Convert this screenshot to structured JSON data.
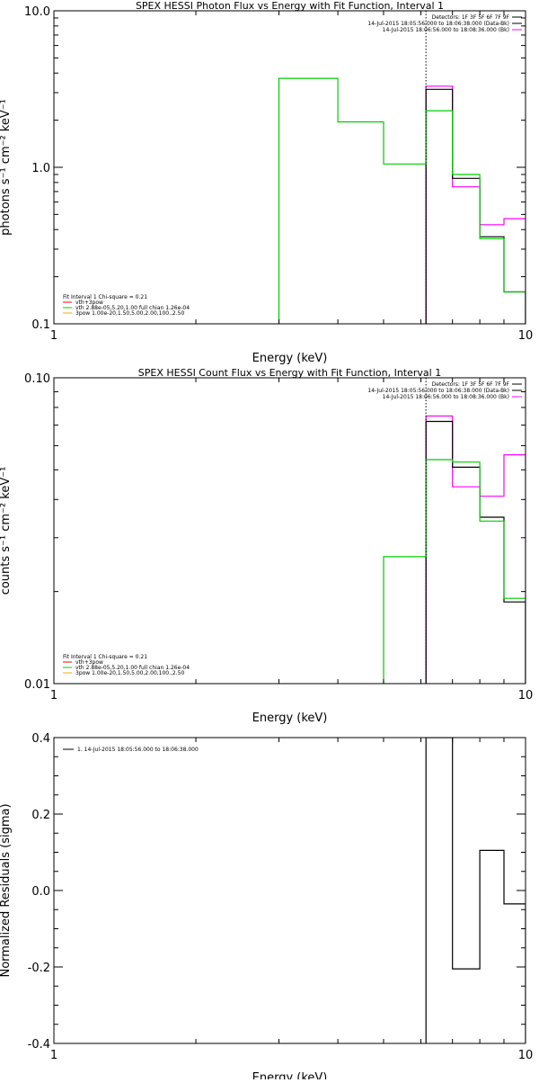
{
  "chart_data": [
    {
      "type": "line",
      "title": "SPEX HESSI Photon Flux vs Energy with Fit Function, Interval 1",
      "xlabel": "Energy (keV)",
      "ylabel": "photons s⁻¹ cm⁻² keV⁻¹",
      "xscale": "log",
      "yscale": "log",
      "xlim": [
        1,
        10
      ],
      "ylim": [
        0.1,
        10.0
      ],
      "xticks": [
        "1",
        "10"
      ],
      "yticks": [
        {
          "v": 0.1,
          "label": "0.1"
        },
        {
          "v": 1.0,
          "label": "1.0"
        },
        {
          "v": 10.0,
          "label": "10.0"
        }
      ],
      "vline_x": 6.15,
      "header_lines": [
        "Detectors: 1F 3F 5F 6F 7F 9F",
        "14-Jul-2015 18:05:56.000 to 18:06:38.000 (Data-Bk)",
        "14-Jul-2015 18:06:56.000 to 18:08:36.000 (Bk)"
      ],
      "header_colors": [
        "#000000",
        "#000000",
        "#ff00ff"
      ],
      "legend_title": "Fit Interval 1    Chi-square = 0.21",
      "legend_items": [
        {
          "label": "vth+3pow",
          "color": "#ff0000"
        },
        {
          "label": "vth 2.88e-05,5.20,1.00   full chian 1.26e-04",
          "color": "#00cc00"
        },
        {
          "label": "3pow 1.00e-20,1.50,5.00,2.00,100.,2.50",
          "color": "#ffa500"
        }
      ],
      "series": [
        {
          "color": "#ff00ff",
          "edges": [
            6.15,
            7.0,
            8.0,
            9.0,
            10.0
          ],
          "values": [
            3.3,
            0.75,
            0.43,
            0.47
          ]
        },
        {
          "color": "#000000",
          "edges": [
            6.15,
            7.0,
            8.0,
            9.0,
            10.0
          ],
          "values": [
            3.15,
            0.85,
            0.36,
            0.16
          ]
        },
        {
          "color": "#00cc00",
          "edges": [
            3.0,
            4.0,
            5.0,
            6.15,
            7.0,
            8.0,
            9.0,
            10.0
          ],
          "values": [
            3.7,
            1.95,
            1.05,
            2.3,
            0.9,
            0.35,
            0.16
          ]
        }
      ]
    },
    {
      "type": "line",
      "title": "SPEX HESSI Count Flux vs Energy with Fit Function, Interval 1",
      "xlabel": "Energy (keV)",
      "ylabel": "counts s⁻¹ cm⁻² keV⁻¹",
      "xscale": "log",
      "yscale": "log",
      "xlim": [
        1,
        10
      ],
      "ylim": [
        0.01,
        0.1
      ],
      "xticks": [
        "1",
        "10"
      ],
      "yticks": [
        {
          "v": 0.01,
          "label": "0.01"
        },
        {
          "v": 0.1,
          "label": "0.10"
        }
      ],
      "vline_x": 6.15,
      "header_lines": [
        "Detectors: 1F 3F 5F 6F 7F 9F",
        "14-Jul-2015 18:05:56.000 to 18:06:38.000 (Data-Bk)",
        "14-Jul-2015 18:06:56.000 to 18:08:36.000 (Bk)"
      ],
      "header_colors": [
        "#000000",
        "#000000",
        "#ff00ff"
      ],
      "legend_title": "Fit Interval 1    Chi-square = 0.21",
      "legend_items": [
        {
          "label": "vth+3pow",
          "color": "#ff0000"
        },
        {
          "label": "vth 2.88e-05,5.20,1.00   full chian 1.26e-04",
          "color": "#00cc00"
        },
        {
          "label": "3pow 1.00e-20,1.50,5.00,2.00,100.,2.50",
          "color": "#ffa500"
        }
      ],
      "series": [
        {
          "color": "#ff00ff",
          "edges": [
            6.15,
            7.0,
            8.0,
            9.0,
            10.0
          ],
          "values": [
            0.075,
            0.044,
            0.041,
            0.056
          ]
        },
        {
          "color": "#000000",
          "edges": [
            6.15,
            7.0,
            8.0,
            9.0,
            10.0
          ],
          "values": [
            0.072,
            0.051,
            0.035,
            0.0185
          ]
        },
        {
          "color": "#00cc00",
          "edges": [
            5.0,
            6.15,
            7.0,
            8.0,
            9.0,
            10.0
          ],
          "values": [
            0.026,
            0.054,
            0.053,
            0.034,
            0.019
          ]
        }
      ]
    },
    {
      "type": "line",
      "title": "",
      "xlabel": "Energy (keV)",
      "ylabel": "Normalized Residuals (sigma)",
      "xscale": "log",
      "yscale": "linear",
      "xlim": [
        1,
        10
      ],
      "ylim": [
        -0.4,
        0.4
      ],
      "xticks": [
        "1",
        "10"
      ],
      "yticks": [
        {
          "v": 0.4,
          "label": "0.4"
        },
        {
          "v": 0.2,
          "label": "0.2"
        },
        {
          "v": 0.0,
          "label": "0.0"
        },
        {
          "v": -0.2,
          "label": "-0.2"
        },
        {
          "v": -0.4,
          "label": "-0.4"
        }
      ],
      "legend_items": [
        {
          "label": "1. 14-Jul-2015 18:05:56.000 to 18:06:38.000",
          "color": "#000000"
        }
      ],
      "series": [
        {
          "color": "#000000",
          "edges": [
            6.15,
            7.0,
            8.0,
            9.0,
            10.0
          ],
          "values": [
            0.4,
            -0.205,
            0.105,
            -0.035
          ]
        }
      ]
    }
  ]
}
